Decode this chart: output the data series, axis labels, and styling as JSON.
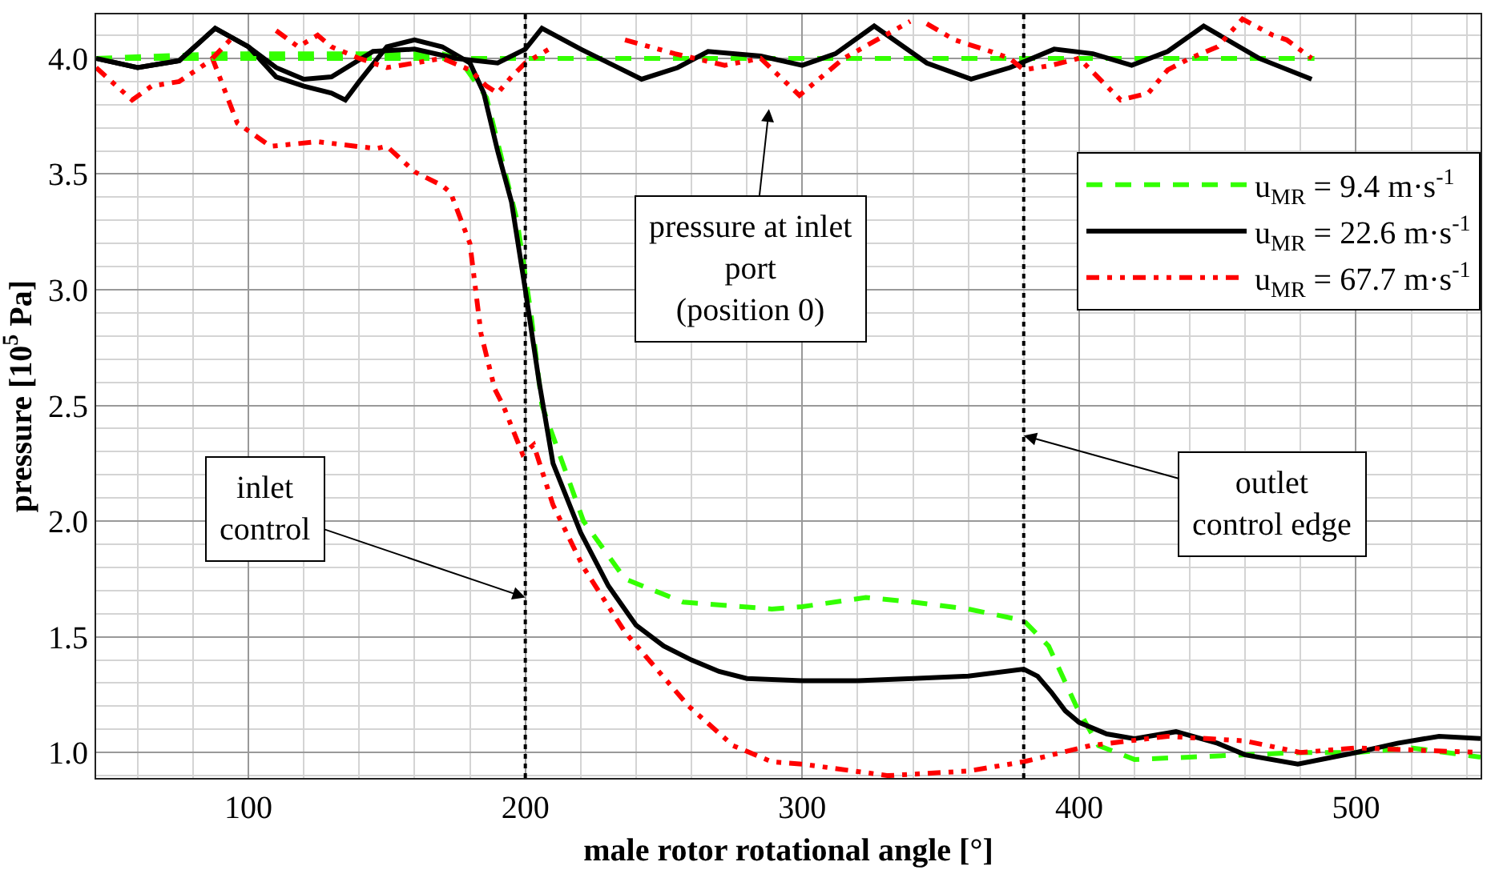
{
  "chart_data": {
    "type": "line",
    "xlabel": "male rotor rotational angle [°]",
    "ylabel": "pressure [10$^{5}$ Pa]",
    "xlim": [
      45,
      545
    ],
    "ylim": [
      0.89,
      4.19
    ],
    "xticks": [
      100,
      200,
      300,
      400,
      500
    ],
    "yticks": [
      {
        "value": 1,
        "label": "1.0"
      },
      {
        "value": 1.5,
        "label": "1.5"
      },
      {
        "value": 2,
        "label": "2.0"
      },
      {
        "value": 2.5,
        "label": "2.5"
      },
      {
        "value": 3,
        "label": "3.0"
      },
      {
        "value": 3.5,
        "label": "3.5"
      },
      {
        "value": 4,
        "label": "4.0"
      }
    ],
    "grid": true,
    "legend": "top right",
    "marker": "none",
    "series": [
      {
        "name": "u$_{MR}$ = 9.4 m·s$^{-1}$",
        "color": "#33ff00",
        "line_style": "dashed",
        "x": [
          45,
          90,
          100,
          150,
          170,
          176,
          186,
          197,
          202,
          206,
          221,
          236,
          257,
          289,
          300,
          323,
          340,
          360,
          380,
          389,
          399,
          407,
          420,
          440,
          460,
          480,
          500,
          520,
          545
        ],
        "values": [
          4.0,
          4.02,
          4.02,
          4.02,
          4.02,
          4.0,
          3.83,
          3.3,
          2.9,
          2.5,
          2.0,
          1.75,
          1.65,
          1.62,
          1.63,
          1.67,
          1.65,
          1.62,
          1.57,
          1.46,
          1.2,
          1.03,
          0.97,
          0.98,
          0.99,
          1.0,
          1.0,
          1.02,
          0.98
        ]
      },
      {
        "name": "u$_{MR}$ = 22.6 m·s$^{-1}$",
        "color": "#000000",
        "line_style": "solid",
        "x": [
          45,
          60,
          75,
          88,
          100,
          110,
          120,
          130,
          135,
          140,
          150,
          160,
          170,
          180,
          185,
          190,
          195,
          200,
          205,
          210,
          220,
          230,
          240,
          250,
          260,
          270,
          280,
          300,
          320,
          340,
          360,
          380,
          385,
          390,
          395,
          400,
          410,
          420,
          435,
          450,
          460,
          479,
          500,
          515,
          530,
          545
        ],
        "values": [
          4.0,
          3.96,
          3.99,
          4.13,
          4.05,
          3.92,
          3.88,
          3.85,
          3.82,
          3.9,
          4.05,
          4.08,
          4.05,
          3.98,
          3.85,
          3.6,
          3.38,
          3.0,
          2.6,
          2.25,
          1.95,
          1.72,
          1.55,
          1.46,
          1.4,
          1.35,
          1.32,
          1.31,
          1.31,
          1.32,
          1.33,
          1.36,
          1.33,
          1.26,
          1.18,
          1.13,
          1.08,
          1.06,
          1.09,
          1.04,
          0.99,
          0.95,
          1.0,
          1.04,
          1.07,
          1.06
        ]
      },
      {
        "name": "u$_{MR}$ = 67.7 m·s$^{-1}$",
        "color": "#ff0000",
        "line_style": "dotted",
        "x": [
          45,
          58,
          65,
          75,
          85,
          87,
          96,
          108,
          125,
          146,
          150,
          160,
          170,
          173,
          180,
          184,
          189,
          192,
          199,
          203,
          210,
          221,
          236,
          259,
          275,
          289,
          300,
          331,
          360,
          380,
          404,
          432,
          460,
          480,
          500,
          545
        ],
        "values": [
          3.96,
          3.82,
          3.88,
          3.9,
          3.98,
          4.0,
          3.72,
          3.62,
          3.64,
          3.61,
          3.62,
          3.51,
          3.45,
          3.42,
          3.2,
          2.81,
          2.57,
          2.5,
          2.29,
          2.33,
          2.07,
          1.8,
          1.52,
          1.2,
          1.03,
          0.96,
          0.95,
          0.9,
          0.92,
          0.96,
          1.03,
          1.07,
          1.05,
          1.0,
          1.02,
          1.0
        ]
      },
      {
        "color": "#33ff00",
        "line_style": "dashed",
        "x": [
          45,
          485
        ],
        "values": [
          4.0,
          4.0
        ]
      },
      {
        "color": "#000000",
        "line_style": "solid",
        "x": [
          45,
          60,
          75,
          88,
          100,
          110,
          120,
          130,
          145,
          160,
          175,
          190,
          200,
          206,
          220,
          242,
          255,
          266,
          285,
          300,
          312,
          326,
          345,
          361,
          375,
          391,
          405,
          419,
          432,
          445,
          465,
          484
        ],
        "values": [
          4.0,
          3.96,
          3.99,
          4.13,
          4.05,
          3.96,
          3.91,
          3.92,
          4.03,
          4.04,
          4.0,
          3.98,
          4.04,
          4.13,
          4.04,
          3.91,
          3.96,
          4.03,
          4.01,
          3.97,
          4.02,
          4.14,
          3.98,
          3.91,
          3.96,
          4.04,
          4.02,
          3.97,
          4.03,
          4.14,
          4.0,
          3.91
        ]
      },
      {
        "color": "#ff0000",
        "line_style": "dotted",
        "x": [
          87,
          95,
          102,
          110,
          118,
          125,
          130,
          140,
          150,
          160,
          170,
          180,
          186,
          190,
          195,
          200,
          210,
          222,
          236,
          254,
          272,
          285,
          299,
          315,
          339,
          342,
          345,
          355,
          368,
          375,
          380,
          390,
          400,
          415,
          425,
          432,
          440,
          450,
          459,
          470,
          475,
          484
        ],
        "values": [
          4.0,
          4.1,
          null,
          4.12,
          4.05,
          4.1,
          4.05,
          4.0,
          3.96,
          3.98,
          4.0,
          3.95,
          3.88,
          3.85,
          3.92,
          3.98,
          4.05,
          null,
          4.08,
          4.02,
          3.97,
          4.0,
          3.84,
          4.0,
          4.16,
          null,
          4.15,
          4.08,
          4.03,
          4.0,
          3.95,
          3.97,
          4.0,
          3.82,
          3.85,
          3.95,
          4.0,
          4.05,
          4.17,
          4.1,
          4.08,
          4.0
        ]
      }
    ],
    "ref_lines": [
      {
        "axis": "x",
        "value": 200,
        "color": "#000000",
        "line_style": "dotted"
      },
      {
        "axis": "x",
        "value": 380,
        "color": "#000000",
        "line_style": "dotted"
      }
    ],
    "annotations": [
      "pressure at inlet\nport\n(position 0)",
      {
        "text": "inlet\ncontrol",
        "x": 200,
        "y": 1.67
      },
      {
        "text": "outlet\ncontrol edge",
        "x": 380,
        "y": 2.37
      }
    ]
  }
}
